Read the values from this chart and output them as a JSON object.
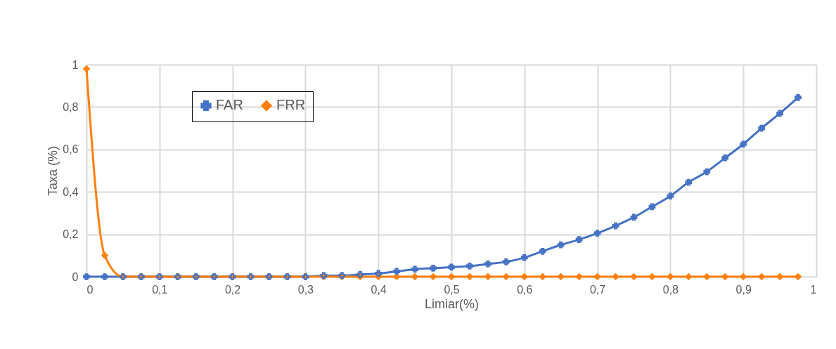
{
  "chart_data": {
    "type": "line",
    "xlabel": "Limiar(%)",
    "ylabel": "Taxa  (%)",
    "x": [
      0,
      0.025,
      0.05,
      0.075,
      0.1,
      0.125,
      0.15,
      0.175,
      0.2,
      0.225,
      0.25,
      0.275,
      0.3,
      0.325,
      0.35,
      0.375,
      0.4,
      0.425,
      0.45,
      0.475,
      0.5,
      0.525,
      0.55,
      0.575,
      0.6,
      0.625,
      0.65,
      0.675,
      0.7,
      0.725,
      0.75,
      0.775,
      0.8,
      0.825,
      0.85,
      0.875,
      0.9,
      0.925,
      0.95,
      0.975
    ],
    "series": [
      {
        "name": "FAR",
        "color": "#4472c4",
        "marker": "cross",
        "values": [
          0,
          0,
          0,
          0,
          0,
          0,
          0,
          0,
          0,
          0,
          0,
          0,
          0,
          0.005,
          0.005,
          0.01,
          0.015,
          0.025,
          0.035,
          0.04,
          0.045,
          0.05,
          0.06,
          0.07,
          0.09,
          0.12,
          0.15,
          0.175,
          0.205,
          0.24,
          0.28,
          0.33,
          0.38,
          0.445,
          0.495,
          0.56,
          0.625,
          0.7,
          0.77,
          0.845
        ]
      },
      {
        "name": "FRR",
        "color": "#ff7f0e",
        "marker": "diamond",
        "values": [
          0.98,
          0.1,
          0,
          0,
          0,
          0,
          0,
          0,
          0,
          0,
          0,
          0,
          0,
          0,
          0,
          0,
          0,
          0,
          0,
          0,
          0,
          0,
          0,
          0,
          0,
          0,
          0,
          0,
          0,
          0,
          0,
          0,
          0,
          0,
          0,
          0,
          0,
          0,
          0,
          0
        ]
      }
    ],
    "xlim": [
      0,
      1
    ],
    "ylim": [
      0,
      1
    ],
    "xticks": [
      0,
      {
        "value": 0.1,
        "label": "0,1"
      },
      {
        "value": 0.2,
        "label": "0,2"
      },
      {
        "value": 0.3,
        "label": "0,3"
      },
      {
        "value": 0.4,
        "label": "0,4"
      },
      {
        "value": 0.5,
        "label": "0,5"
      },
      {
        "value": 0.6,
        "label": "0,6"
      },
      {
        "value": 0.7,
        "label": "0,7"
      },
      {
        "value": 0.8,
        "label": "0,8"
      },
      {
        "value": 0.9,
        "label": "0,9"
      },
      1
    ],
    "yticks": [
      0,
      {
        "value": 0.2,
        "label": "0,2"
      },
      {
        "value": 0.4,
        "label": "0,4"
      },
      {
        "value": 0.6,
        "label": "0,6"
      },
      {
        "value": 0.8,
        "label": "0,8"
      },
      1
    ],
    "grid": true,
    "legend": "top left"
  }
}
